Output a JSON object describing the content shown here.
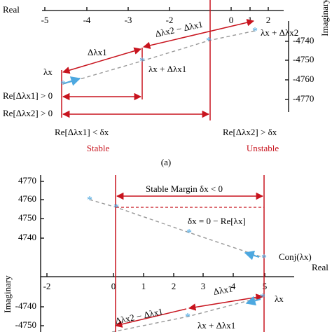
{
  "panel_a": {
    "real_axis": "Real",
    "imag_axis": "Imaginary",
    "x_ticks": [
      "-5",
      "-4",
      "-3",
      "-2",
      "0",
      "1",
      "2"
    ],
    "y_ticks": [
      "-4740",
      "-4750",
      "-4760",
      "-4770"
    ],
    "lambda": "λx",
    "lambda_plus_1": "λx + Δλx1",
    "lambda_plus_2": "λx + Δλx2",
    "delta_1": "Δλx1",
    "delta_21": "Δλx2 − Δλx1",
    "re_1": "Re[Δλx1] > 0",
    "re_2": "Re[Δλx2] > 0",
    "cond_stable": "Re[Δλx1] < δx",
    "stable": "Stable",
    "cond_unstable": "Re[Δλx2] > δx",
    "unstable": "Unstable",
    "caption": "(a)"
  },
  "panel_b": {
    "real_axis": "Real",
    "imag_axis": "Imaginary",
    "x_ticks": [
      "-2",
      "0",
      "1",
      "2",
      "3",
      "4",
      "5"
    ],
    "y_ticks_pos": [
      "4770",
      "4760",
      "4750",
      "4740"
    ],
    "y_ticks_neg": [
      "-4740",
      "-4750"
    ],
    "margin": "Stable Margin δx < 0",
    "margin_def": "δx = 0 − Re[λx]",
    "conj": "Conj(λx)",
    "lambda": "λx",
    "lambda_plus_1": "λx + Δλx1",
    "delta_1": "Δλx1",
    "delta_21": "Δλx2 − Δλx1"
  }
}
